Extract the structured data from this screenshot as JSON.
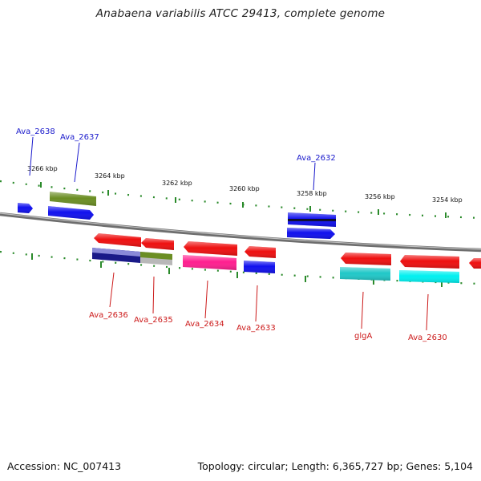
{
  "title": "Anabaena variabilis ATCC 29413, complete genome",
  "footer": {
    "accession": "Accession: NC_007413",
    "topology": "Topology: circular; Length: 6,365,727 bp; Genes: 5,104"
  },
  "colors": {
    "backbone": "#888888",
    "ticks": "#2a8a2a",
    "forward_label": "#1a1acc",
    "reverse_label": "#cc1a1a"
  },
  "ticks": [
    "3266 kbp",
    "3264 kbp",
    "3262 kbp",
    "3260 kbp",
    "3258 kbp",
    "3256 kbp",
    "3254 kbp"
  ],
  "genes_forward": [
    "Ava_2638",
    "Ava_2637",
    "Ava_2632"
  ],
  "genes_reverse": [
    "Ava_2636",
    "Ava_2635",
    "Ava_2634",
    "Ava_2633",
    "glgA",
    "Ava_2630"
  ]
}
